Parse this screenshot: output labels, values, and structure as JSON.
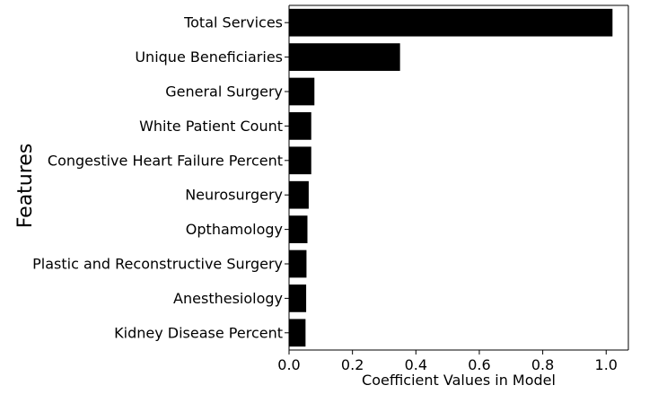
{
  "chart_data": {
    "type": "bar",
    "orientation": "horizontal",
    "title": "",
    "xlabel": "Coefficient Values in Model",
    "ylabel": "Features",
    "categories": [
      "Total Services",
      "Unique Beneficiaries",
      "General Surgery",
      "White Patient Count",
      "Congestive Heart Failure Percent",
      "Neurosurgery",
      "Opthamology",
      "Plastic and Reconstructive Surgery",
      "Anesthesiology",
      "Kidney Disease Percent"
    ],
    "values": [
      1.02,
      0.35,
      0.08,
      0.07,
      0.07,
      0.062,
      0.058,
      0.055,
      0.054,
      0.052
    ],
    "xlim": [
      0,
      1.07
    ],
    "xticks": [
      "0.0",
      "0.2",
      "0.4",
      "0.6",
      "0.8",
      "1.0"
    ],
    "bar_color": "#000000",
    "grid": false,
    "legend": "none"
  }
}
